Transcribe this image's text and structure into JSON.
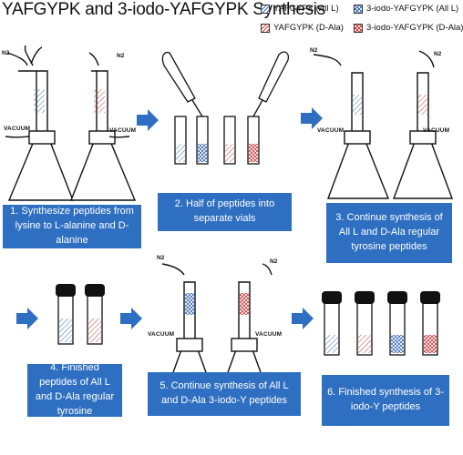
{
  "title": "YAFGYPK and 3-iodo-YAFGYPK Synthesis",
  "legend": [
    {
      "label": "YAFGYPK (All L)",
      "color": "#3b6fb6",
      "pattern": "diagonal"
    },
    {
      "label": "3-iodo-YAFGYPK (All L)",
      "color": "#3b6fb6",
      "pattern": "cross"
    },
    {
      "label": "YAFGYPK (D-Ala)",
      "color": "#cc3b3b",
      "pattern": "diagonal"
    },
    {
      "label": "3-iodo-YAFGYPK (D-Ala)",
      "color": "#cc3b3b",
      "pattern": "cross"
    }
  ],
  "steps": [
    {
      "text": "1. Synthesize peptides from lysine to L-alanine and D-alanine"
    },
    {
      "text": "2. Half of peptides into separate vials"
    },
    {
      "text": "3. Continue synthesis of All L and D-Ala regular tyrosine peptides"
    },
    {
      "text": "4. Finished peptides of All L and D-Ala regular tyrosine"
    },
    {
      "text": "5. Continue synthesis of All L and D-Ala 3-iodo-Y peptides"
    },
    {
      "text": "6. Finished synthesis of 3-iodo-Y peptides"
    }
  ],
  "apparatus": {
    "vacuum_label": "VACUUM",
    "n2_label": "N2"
  },
  "colors": {
    "step_box": "#2f6fc1",
    "arrow": "#2f6fc1",
    "blue": "#3b6fb6",
    "red": "#cc3b3b"
  }
}
